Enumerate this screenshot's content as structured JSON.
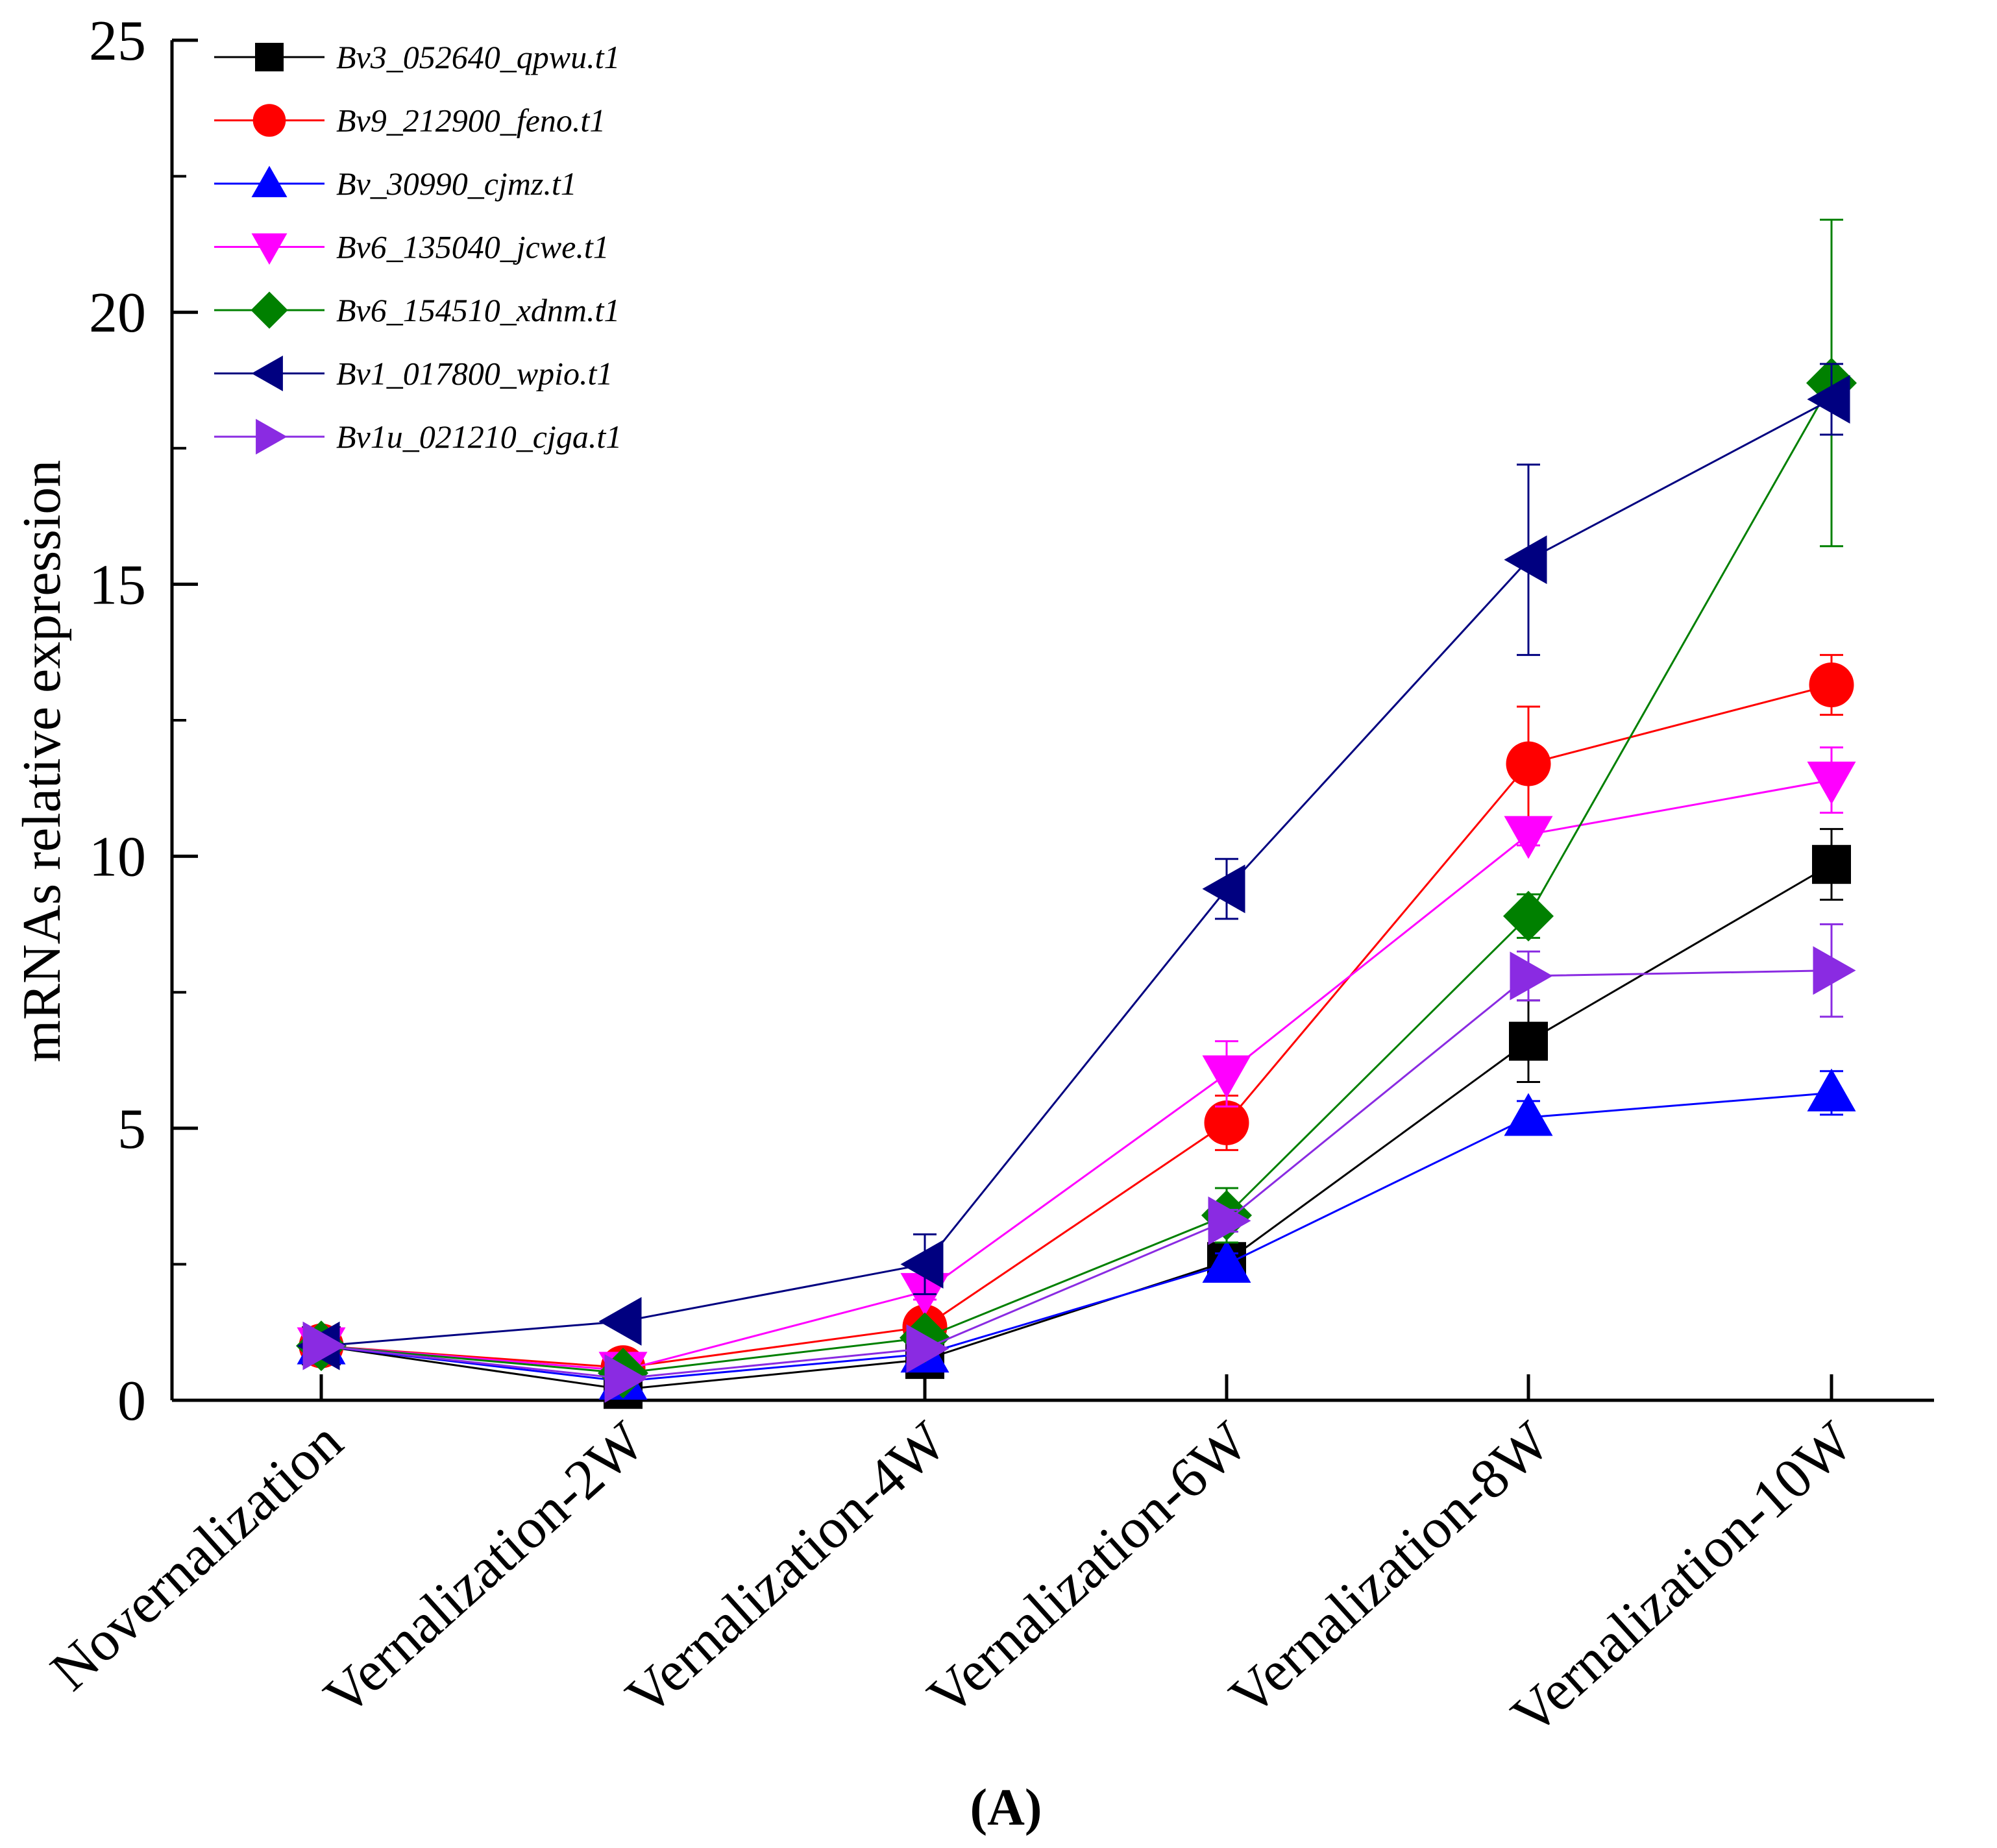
{
  "chart_data": {
    "type": "line",
    "title": "",
    "panel_label": "(A)",
    "xlabel": "",
    "ylabel": "mRNAs relative expression",
    "ylim": [
      0,
      25
    ],
    "yticks": [
      0,
      5,
      10,
      15,
      20,
      25
    ],
    "categories": [
      "Novernalization",
      "Vernalization-2W",
      "Vernalization-4W",
      "Vernalization-6W",
      "Vernalization-8W",
      "Vernalization-10W"
    ],
    "legend_position": "top-left",
    "series": [
      {
        "name": "Bv3_052640_qpwu.t1",
        "color": "#000000",
        "marker": "square",
        "values": [
          1.0,
          0.2,
          0.75,
          2.55,
          6.6,
          9.85
        ],
        "errors": [
          0.05,
          0.05,
          0.1,
          0.2,
          0.75,
          0.65
        ]
      },
      {
        "name": "Bv9_212900_feno.t1",
        "color": "#ff0000",
        "marker": "circle",
        "values": [
          1.0,
          0.6,
          1.35,
          5.1,
          11.7,
          13.15
        ],
        "errors": [
          0.05,
          0.05,
          0.1,
          0.5,
          1.05,
          0.55
        ]
      },
      {
        "name": "Bv_30990_cjmz.t1",
        "color": "#0000ff",
        "marker": "triangle-up",
        "values": [
          1.0,
          0.35,
          0.85,
          2.5,
          5.2,
          5.65
        ],
        "errors": [
          0.05,
          0.05,
          0.1,
          0.2,
          0.3,
          0.4
        ]
      },
      {
        "name": "Bv6_135040_jcwe.t1",
        "color": "#ff00ff",
        "marker": "triangle-down",
        "values": [
          1.0,
          0.55,
          2.0,
          6.0,
          10.4,
          11.4
        ],
        "errors": [
          0.05,
          0.05,
          0.15,
          0.6,
          0.2,
          0.6
        ]
      },
      {
        "name": "Bv6_154510_xdnm.t1",
        "color": "#008000",
        "marker": "diamond",
        "values": [
          1.0,
          0.5,
          1.15,
          3.4,
          8.9,
          18.7
        ],
        "errors": [
          0.05,
          0.05,
          0.1,
          0.5,
          0.4,
          3.0
        ]
      },
      {
        "name": "Bv1_017800_wpio.t1",
        "color": "#000080",
        "marker": "triangle-left",
        "values": [
          1.0,
          1.45,
          2.5,
          9.4,
          15.45,
          18.4
        ],
        "errors": [
          0.05,
          0.05,
          0.55,
          0.55,
          1.75,
          0.65
        ]
      },
      {
        "name": "Bv1u_021210_cjga.t1",
        "color": "#8a2be2",
        "marker": "triangle-right",
        "values": [
          1.0,
          0.4,
          0.95,
          3.3,
          7.8,
          7.9
        ],
        "errors": [
          0.05,
          0.05,
          0.1,
          0.2,
          0.45,
          0.85
        ]
      }
    ]
  }
}
